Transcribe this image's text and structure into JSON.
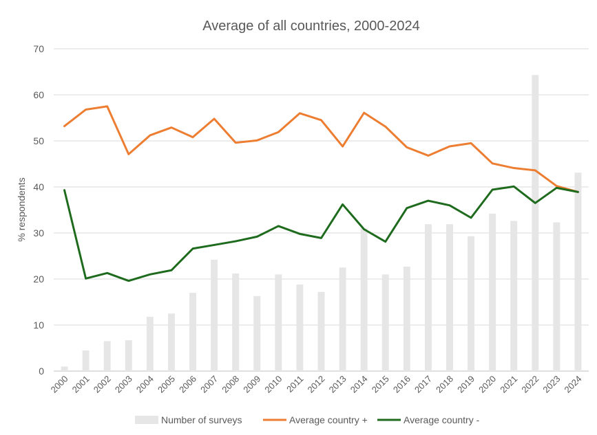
{
  "chart_data": {
    "type": "bar+line",
    "title": "Average of all countries, 2000-2024",
    "xlabel": "",
    "ylabel": "% respondents",
    "ylim": [
      0,
      70
    ],
    "yticks": [
      0,
      10,
      20,
      30,
      40,
      50,
      60,
      70
    ],
    "grid": true,
    "legend_position": "bottom",
    "categories": [
      "2000",
      "2001",
      "2002",
      "2003",
      "2004",
      "2005",
      "2006",
      "2007",
      "2008",
      "2009",
      "2010",
      "2011",
      "2012",
      "2013",
      "2014",
      "2015",
      "2016",
      "2017",
      "2018",
      "2019",
      "2020",
      "2021",
      "2022",
      "2023",
      "2024"
    ],
    "series": [
      {
        "name": "Number of surveys",
        "kind": "bar",
        "color": "#e6e6e6",
        "values": [
          1,
          4.5,
          6.5,
          6.7,
          11.8,
          12.5,
          17,
          24.2,
          21.2,
          16.3,
          21,
          18.8,
          17.2,
          22.5,
          31,
          21,
          22.7,
          31.9,
          31.9,
          29.3,
          34.2,
          32.6,
          64.3,
          32.3,
          43.1
        ]
      },
      {
        "name": "Average country +",
        "kind": "line",
        "color": "#ed7d31",
        "values": [
          53.2,
          56.8,
          57.5,
          47.1,
          51.2,
          52.9,
          50.8,
          54.8,
          49.6,
          50.1,
          51.9,
          56,
          54.5,
          48.8,
          56.1,
          53.1,
          48.6,
          46.8,
          48.8,
          49.5,
          45.1,
          44.1,
          43.6,
          40.2,
          38.9
        ]
      },
      {
        "name": "Average country -",
        "kind": "line",
        "color": "#1e6b1e",
        "values": [
          39.3,
          20.1,
          21.3,
          19.6,
          21,
          21.9,
          26.6,
          27.4,
          28.2,
          29.2,
          31.5,
          29.8,
          28.9,
          36.2,
          30.8,
          28.1,
          35.4,
          37,
          36,
          33.3,
          39.4,
          40.1,
          36.5,
          39.8,
          38.9
        ]
      }
    ]
  }
}
